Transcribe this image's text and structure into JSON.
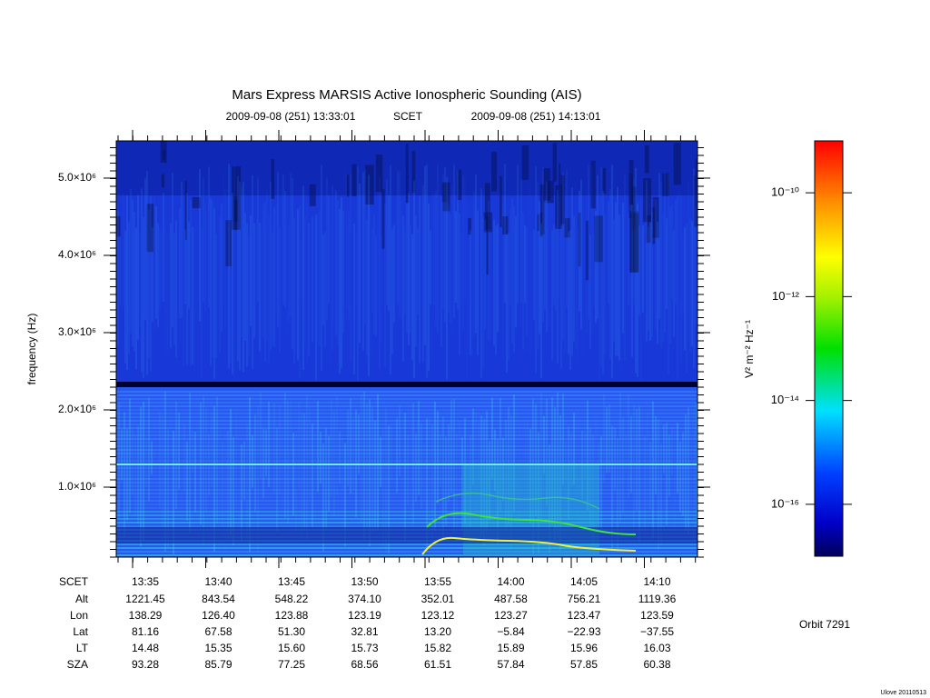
{
  "chart_data": {
    "type": "spectrogram",
    "title": "Mars Express MARSIS Active Ionospheric Sounding (AIS)",
    "start_time": "2009-09-08 (251) 13:33:01",
    "time_system": "SCET",
    "end_time": "2009-09-08 (251) 14:13:01",
    "ylabel": "frequency (Hz)",
    "ylim": [
      94000,
      5482000
    ],
    "yticks": [
      {
        "value": 1000000,
        "label": "1.0×10⁶"
      },
      {
        "value": 2000000,
        "label": "2.0×10⁶"
      },
      {
        "value": 3000000,
        "label": "3.0×10⁶"
      },
      {
        "value": 4000000,
        "label": "4.0×10⁶"
      },
      {
        "value": 5000000,
        "label": "5.0×10⁶"
      }
    ],
    "colorbar": {
      "label": "V² m⁻² Hz⁻¹",
      "log": true,
      "zlim": [
        1e-17,
        1e-09
      ],
      "zticks": [
        {
          "value": 1e-10,
          "label": "10⁻¹⁰"
        },
        {
          "value": 1e-12,
          "label": "10⁻¹²"
        },
        {
          "value": 1e-14,
          "label": "10⁻¹⁴"
        },
        {
          "value": 1e-16,
          "label": "10⁻¹⁶"
        }
      ]
    },
    "ephemeris": {
      "header": "SCET",
      "times": [
        "13:35",
        "13:40",
        "13:45",
        "13:50",
        "13:55",
        "14:00",
        "14:05",
        "14:10"
      ],
      "rows": [
        {
          "label": "Alt",
          "values": [
            "1221.45",
            "843.54",
            "548.22",
            "374.10",
            "352.01",
            "487.58",
            "756.21",
            "1119.36"
          ]
        },
        {
          "label": "Lon",
          "values": [
            "138.29",
            "126.40",
            "123.88",
            "123.19",
            "123.12",
            "123.27",
            "123.47",
            "123.59"
          ]
        },
        {
          "label": "Lat",
          "values": [
            "81.16",
            "67.58",
            "51.30",
            "32.81",
            "13.20",
            "−5.84",
            "−22.93",
            "−37.55"
          ]
        },
        {
          "label": "LT",
          "values": [
            "14.48",
            "15.35",
            "15.60",
            "15.73",
            "15.82",
            "15.89",
            "15.96",
            "16.03"
          ]
        },
        {
          "label": "SZA",
          "values": [
            "93.28",
            "85.79",
            "77.25",
            "68.56",
            "61.51",
            "57.84",
            "57.85",
            "60.38"
          ]
        }
      ]
    },
    "orbit": "Orbit 7291",
    "footer": "Ulove 20110513"
  }
}
